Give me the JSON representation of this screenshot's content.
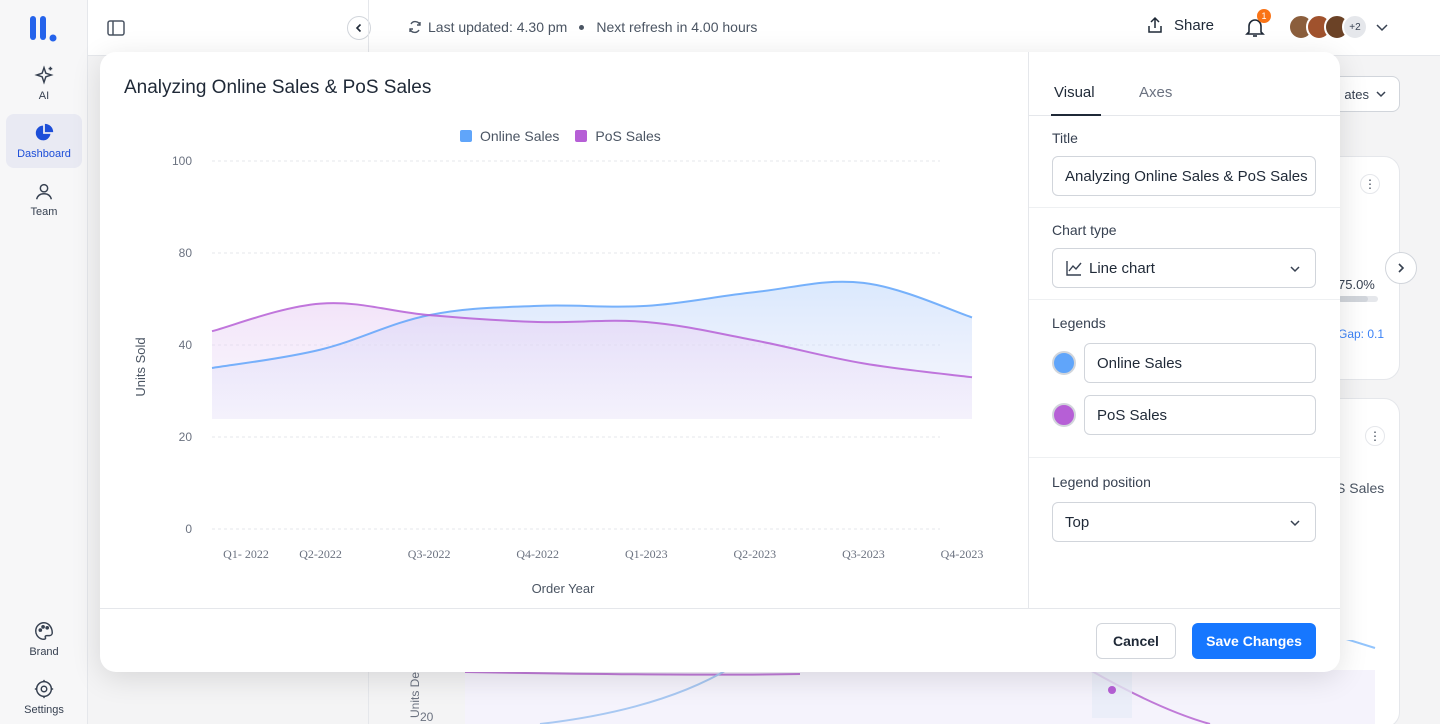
{
  "sidebar": {
    "items": [
      {
        "label": "AI",
        "icon": "sparkle-icon"
      },
      {
        "label": "Dashboard",
        "icon": "pie-chart-icon"
      },
      {
        "label": "Team",
        "icon": "team-icon"
      },
      {
        "label": "Brand",
        "icon": "palette-icon"
      },
      {
        "label": "Settings",
        "icon": "gear-icon"
      }
    ]
  },
  "topbar": {
    "last_updated": "Last updated: 4.30 pm",
    "next_refresh": "Next refresh in 4.00 hours",
    "share_label": "Share",
    "notification_count": "1",
    "more_avatars": "+2"
  },
  "background": {
    "dropdown_text": "ates",
    "progress_text": "75.0%",
    "progress_fraction": 0.75,
    "gap_text": "Gap: 0.1",
    "series_text": "S Sales",
    "y_axis_label": "Units De",
    "y_tick": "20"
  },
  "modal": {
    "title": "Analyzing Online Sales & PoS Sales",
    "cancel_label": "Cancel",
    "save_label": "Save Changes"
  },
  "panel": {
    "tabs": [
      "Visual",
      "Axes"
    ],
    "title_label": "Title",
    "title_value": "Analyzing Online Sales & PoS Sales",
    "chart_type_label": "Chart type",
    "chart_type_value": "Line chart",
    "legends_label": "Legends",
    "legend_items": [
      {
        "name": "Online Sales",
        "color": "#60a5fa"
      },
      {
        "name": "PoS Sales",
        "color": "#b65fd6"
      }
    ],
    "legend_position_label": "Legend position",
    "legend_position_value": "Top"
  },
  "chart_data": {
    "type": "line",
    "title": "Analyzing Online Sales & PoS Sales",
    "xlabel": "Order Year",
    "ylabel": "Units Sold",
    "categories": [
      "Q1- 2022",
      "Q2-2022",
      "Q3-2022",
      "Q4-2022",
      "Q1-2023",
      "Q2-2023",
      "Q3-2023",
      "Q4-2023"
    ],
    "yticks": [
      "0",
      "20",
      "40",
      "80",
      "100"
    ],
    "ytick_values": [
      0,
      20,
      40,
      80,
      100
    ],
    "series": [
      {
        "name": "Online Sales",
        "color": "#60a5fa",
        "values": [
          35,
          39,
          53,
          57,
          57,
          63,
          67,
          52
        ]
      },
      {
        "name": "PoS Sales",
        "color": "#b65fd6",
        "values": [
          46,
          58,
          53,
          50,
          50,
          42,
          36,
          33
        ]
      }
    ],
    "legend_position": "top",
    "grid": true
  }
}
